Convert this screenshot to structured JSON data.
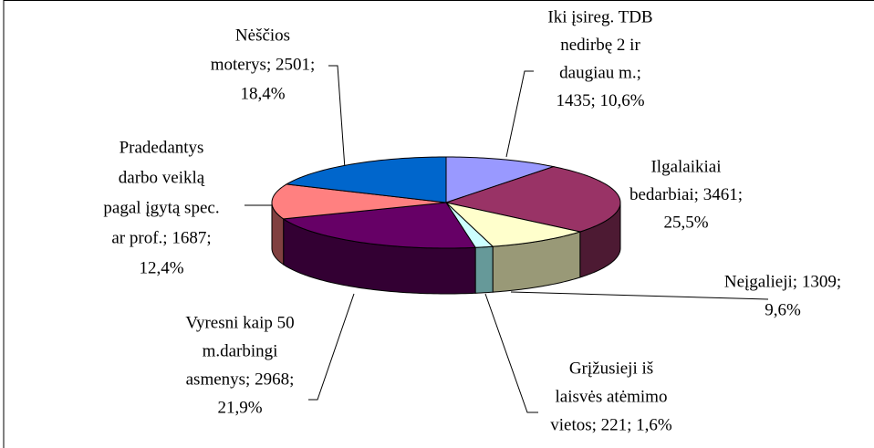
{
  "chart_data": {
    "type": "pie3d",
    "labels": [
      [
        "Iki įsireg. TDB",
        "nedirbę 2 ir",
        "daugiau m.;",
        "1435; 10,6%"
      ],
      [
        "Ilgalaikiai",
        "bedarbiai; 3461;",
        "25,5%"
      ],
      [
        "Neįgalieji; 1309;",
        "9,6%"
      ],
      [
        "Grįžusieji iš",
        "laisvės atėmimo",
        "vietos; 221; 1,6%"
      ],
      [
        "Vyresni kaip 50",
        "m.darbingi",
        "asmenys; 2968;",
        "21,9%"
      ],
      [
        "Pradedantys",
        "darbo veiklą",
        "pagal įgytą spec.",
        "ar prof.; 1687;",
        "12,4%"
      ],
      [
        "Nėščios",
        "moterys; 2501;",
        "18,4%"
      ]
    ],
    "values": [
      1435,
      3461,
      1309,
      221,
      2968,
      1687,
      2501
    ],
    "colors": [
      "#9999ff",
      "#993366",
      "#ffffcc",
      "#ccffff",
      "#660066",
      "#ff8080",
      "#0066cc"
    ],
    "side_colors": [
      "#4d4d80",
      "#4d1a33",
      "#999977",
      "#669999",
      "#330033",
      "#804040",
      "#003366"
    ]
  }
}
